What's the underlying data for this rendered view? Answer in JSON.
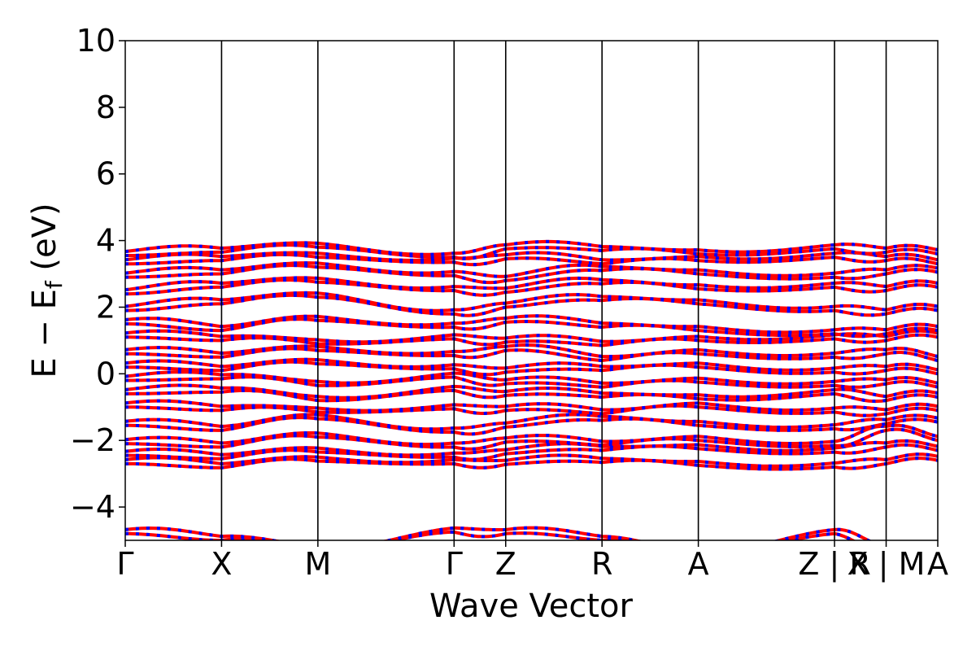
{
  "chart_data": {
    "type": "line",
    "title": "",
    "xlabel": "Wave Vector",
    "ylabel": "E − E",
    "ylabel_subscript": "f",
    "ylabel_unit": "(eV)",
    "ylim": [
      -5,
      10
    ],
    "yticks": [
      -4,
      -2,
      0,
      2,
      4,
      6,
      8,
      10
    ],
    "ytick_labels": [
      "−4",
      "−2",
      "0",
      "2",
      "4",
      "6",
      "8",
      "10"
    ],
    "kpath": [
      {
        "label": "Γ",
        "x": 0.0
      },
      {
        "label": "X",
        "x": 1.0
      },
      {
        "label": "M",
        "x": 2.0
      },
      {
        "label": "Γ",
        "x": 3.414
      },
      {
        "label": "Z",
        "x": 3.95
      },
      {
        "label": "R",
        "x": 4.95
      },
      {
        "label": "A",
        "x": 5.95
      },
      {
        "label": "Z | R",
        "x": 7.364
      },
      {
        "label": "X | M",
        "x": 7.9
      },
      {
        "label": "A",
        "x": 8.436
      }
    ],
    "xlim": [
      0,
      8.436
    ],
    "grid": false,
    "legend": "none",
    "colors": {
      "spin_up": "#ff0000",
      "spin_down": "#0000ff"
    },
    "series": [
      {
        "name": "",
        "color": "#ff0000",
        "y": [
          -2.7,
          -2.82,
          -2.62,
          -2.7,
          -2.72,
          -2.66,
          -2.75,
          -2.8,
          -2.7,
          -2.6
        ]
      },
      {
        "name": "",
        "color": "#ff0000",
        "y": [
          -2.45,
          -2.55,
          -2.35,
          -2.5,
          -2.4,
          -2.3,
          -2.25,
          -2.35,
          -2.2,
          -2.3
        ]
      },
      {
        "name": "",
        "color": "#ff0000",
        "y": [
          -2.1,
          -2.2,
          -1.9,
          -2.2,
          -2.05,
          -2.15,
          -2.0,
          -2.15,
          -1.7,
          -2.0
        ]
      },
      {
        "name": "",
        "color": "#ff0000",
        "y": [
          -1.55,
          -1.7,
          -1.35,
          -1.75,
          -1.6,
          -1.4,
          -1.55,
          -1.65,
          -1.5,
          -1.45
        ]
      },
      {
        "name": "",
        "color": "#ff0000",
        "y": [
          -1.0,
          -1.1,
          -1.15,
          -1.05,
          -1.1,
          -1.2,
          -1.0,
          -1.15,
          -1.2,
          -1.1
        ]
      },
      {
        "name": "",
        "color": "#ff0000",
        "y": [
          -0.6,
          -0.55,
          -0.8,
          -0.5,
          -0.65,
          -0.7,
          -0.75,
          -0.6,
          -0.8,
          -0.7
        ]
      },
      {
        "name": "",
        "color": "#ff0000",
        "y": [
          -0.2,
          -0.15,
          -0.35,
          -0.1,
          -0.3,
          -0.4,
          -0.25,
          -0.35,
          -0.3,
          -0.4
        ]
      },
      {
        "name": "",
        "color": "#ff0000",
        "y": [
          0.2,
          0.1,
          0.3,
          0.15,
          0.05,
          0.1,
          0.2,
          0.05,
          0.1,
          0.0
        ]
      },
      {
        "name": "",
        "color": "#ff0000",
        "y": [
          0.6,
          0.5,
          0.7,
          0.55,
          0.7,
          0.4,
          0.6,
          0.5,
          0.6,
          0.4
        ]
      },
      {
        "name": "",
        "color": "#ff0000",
        "y": [
          1.1,
          1.0,
          0.9,
          1.05,
          0.95,
          0.85,
          1.0,
          1.05,
          1.0,
          1.1
        ]
      },
      {
        "name": "",
        "color": "#ff0000",
        "y": [
          1.5,
          1.3,
          1.6,
          1.4,
          1.55,
          1.4,
          1.3,
          1.2,
          1.2,
          1.3
        ]
      },
      {
        "name": "",
        "color": "#ff0000",
        "y": [
          1.9,
          2.1,
          2.3,
          1.8,
          2.0,
          2.2,
          2.1,
          1.9,
          1.8,
          1.9
        ]
      },
      {
        "name": "",
        "color": "#ff0000",
        "y": [
          2.4,
          2.6,
          2.75,
          2.5,
          2.45,
          2.7,
          2.55,
          2.6,
          2.5,
          2.6
        ]
      },
      {
        "name": "",
        "color": "#ff0000",
        "y": [
          2.9,
          3.0,
          3.2,
          2.95,
          2.8,
          3.1,
          3.0,
          2.9,
          3.0,
          3.05
        ]
      },
      {
        "name": "",
        "color": "#ff0000",
        "y": [
          3.3,
          3.4,
          3.5,
          3.35,
          3.45,
          3.3,
          3.4,
          3.5,
          3.4,
          3.3
        ]
      },
      {
        "name": "",
        "color": "#ff0000",
        "y": [
          3.55,
          3.65,
          3.8,
          3.5,
          3.75,
          3.7,
          3.6,
          3.75,
          3.65,
          3.6
        ]
      },
      {
        "name": "",
        "color": "#ff0000",
        "y": [
          -4.8,
          -5.0,
          -5.3,
          -4.75,
          -4.8,
          -5.0,
          -5.4,
          -4.8,
          -5.3,
          -5.4
        ]
      }
    ]
  }
}
